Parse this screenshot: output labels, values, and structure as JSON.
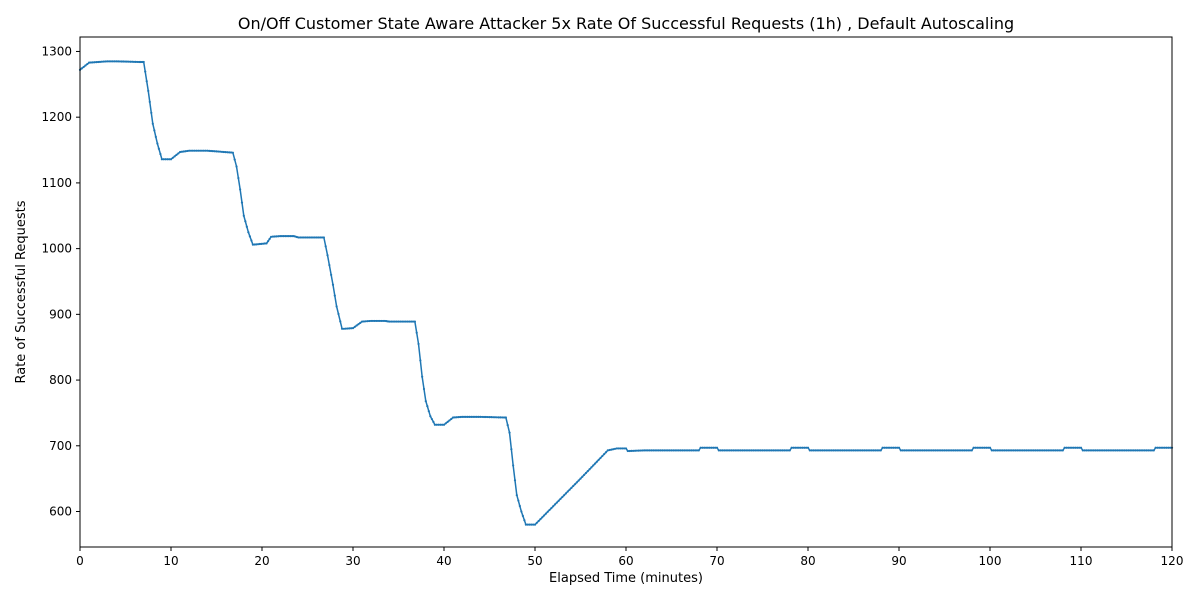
{
  "chart_data": {
    "type": "line",
    "title": "On/Off Customer State Aware Attacker 5x Rate Of Successful Requests (1h) , Default Autoscaling",
    "xlabel": "Elapsed Time (minutes)",
    "ylabel": "Rate of Successful Requests",
    "xlim": [
      0,
      120
    ],
    "ylim": [
      546,
      1322
    ],
    "xticks": [
      0,
      10,
      20,
      30,
      40,
      50,
      60,
      70,
      80,
      90,
      100,
      110,
      120
    ],
    "yticks": [
      600,
      700,
      800,
      900,
      1000,
      1100,
      1200,
      1300
    ],
    "grid": false,
    "series": [
      {
        "color": "#1f77b4",
        "x": [
          0,
          1,
          2,
          3,
          4,
          6.5,
          7,
          7.5,
          8,
          8.5,
          9,
          10,
          11,
          12,
          14,
          16.8,
          17.2,
          17.6,
          18,
          18.5,
          19,
          20.5,
          21,
          22,
          23.5,
          24,
          26.8,
          27.2,
          27.8,
          28.2,
          28.8,
          29,
          30,
          31,
          32,
          33.5,
          34,
          36.8,
          37.2,
          37.6,
          38,
          38.5,
          39,
          40,
          41,
          42,
          44,
          46.8,
          47.2,
          47.6,
          48,
          48.5,
          49,
          50,
          51,
          52,
          55,
          58,
          59,
          60,
          60.2,
          62,
          68,
          68.2,
          70,
          70.2,
          78,
          78.2,
          80,
          80.2,
          88,
          88.2,
          90,
          90.2,
          98,
          98.2,
          100,
          100.2,
          108,
          108.2,
          110,
          110.2,
          118,
          118.2,
          120
        ],
        "y": [
          1272,
          1283,
          1284,
          1285,
          1285,
          1284,
          1284,
          1240,
          1190,
          1160,
          1136,
          1136,
          1147,
          1149,
          1149,
          1146,
          1125,
          1090,
          1050,
          1025,
          1006,
          1008,
          1018,
          1019,
          1019,
          1017,
          1017,
          990,
          945,
          912,
          878,
          878,
          879,
          889,
          890,
          890,
          889,
          889,
          855,
          805,
          768,
          745,
          732,
          732,
          743,
          744,
          744,
          743,
          720,
          670,
          625,
          600,
          580,
          580,
          594,
          608,
          650,
          693,
          696,
          696,
          692,
          693,
          693,
          697,
          697,
          693,
          693,
          697,
          697,
          693,
          693,
          697,
          697,
          693,
          693,
          697,
          697,
          693,
          693,
          697,
          697,
          693,
          693,
          697,
          697
        ]
      }
    ]
  }
}
